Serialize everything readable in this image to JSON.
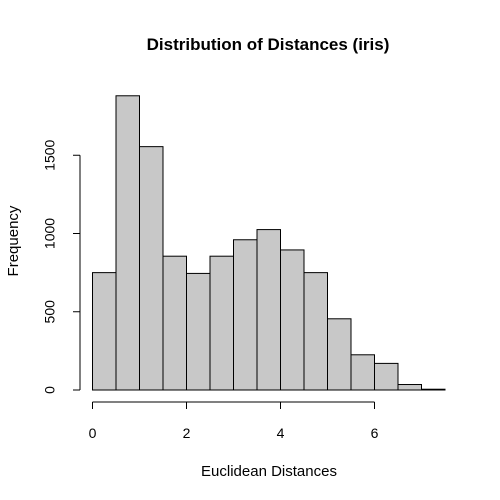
{
  "chart_data": {
    "type": "bar",
    "title": "Distribution of Distances (iris)",
    "xlabel": "Euclidean Distances",
    "ylabel": "Frequency",
    "bin_edges": [
      0,
      0.5,
      1,
      1.5,
      2,
      2.5,
      3,
      3.5,
      4,
      4.5,
      5,
      5.5,
      6,
      6.5,
      7,
      7.5
    ],
    "values": [
      750,
      1880,
      1555,
      855,
      745,
      855,
      960,
      1025,
      895,
      750,
      455,
      225,
      170,
      35,
      5
    ],
    "xlim": [
      0,
      7.5
    ],
    "ylim": [
      0,
      1880
    ],
    "x_ticks": [
      0,
      2,
      4,
      6
    ],
    "x_tick_labels": [
      "0",
      "2",
      "4",
      "6"
    ],
    "y_ticks": [
      0,
      500,
      1000,
      1500
    ],
    "y_tick_labels": [
      "0",
      "500",
      "1000",
      "1500"
    ],
    "bar_fill": "#c8c8c8",
    "grid": false,
    "legend": "none"
  }
}
